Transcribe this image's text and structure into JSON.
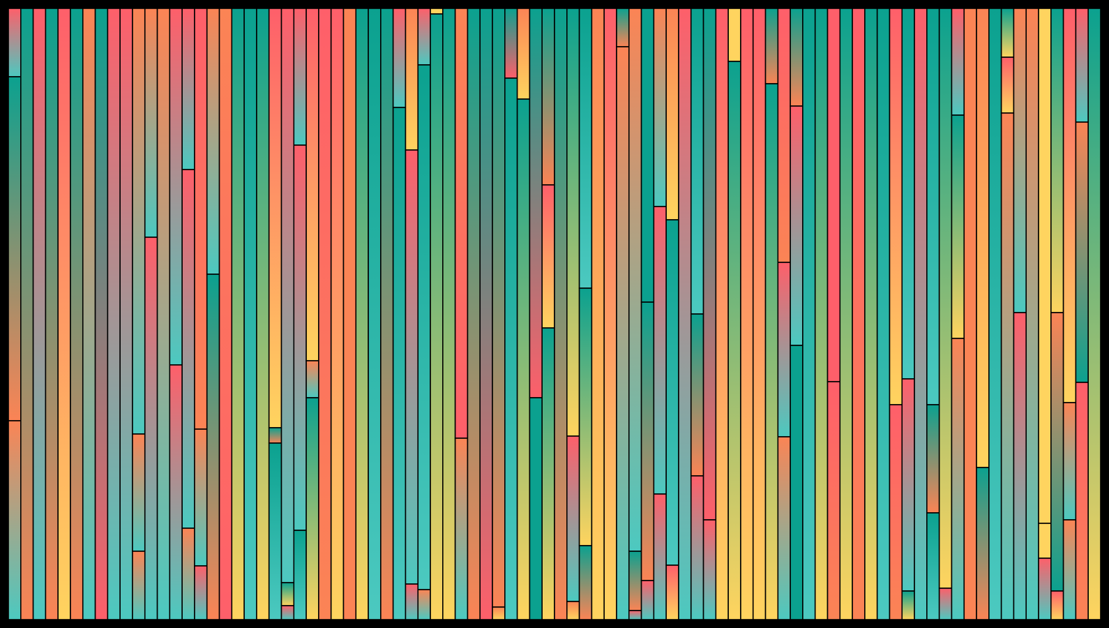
{
  "artwork": {
    "description_tag": "",
    "palette": {
      "teal": "#0ba18f",
      "cyan": "#4cc9c0",
      "coral": "#fe5f6a",
      "orange": "#fb8455",
      "yellow": "#ffd45f",
      "background": "#000000",
      "stroke": "#000000"
    }
  }
}
